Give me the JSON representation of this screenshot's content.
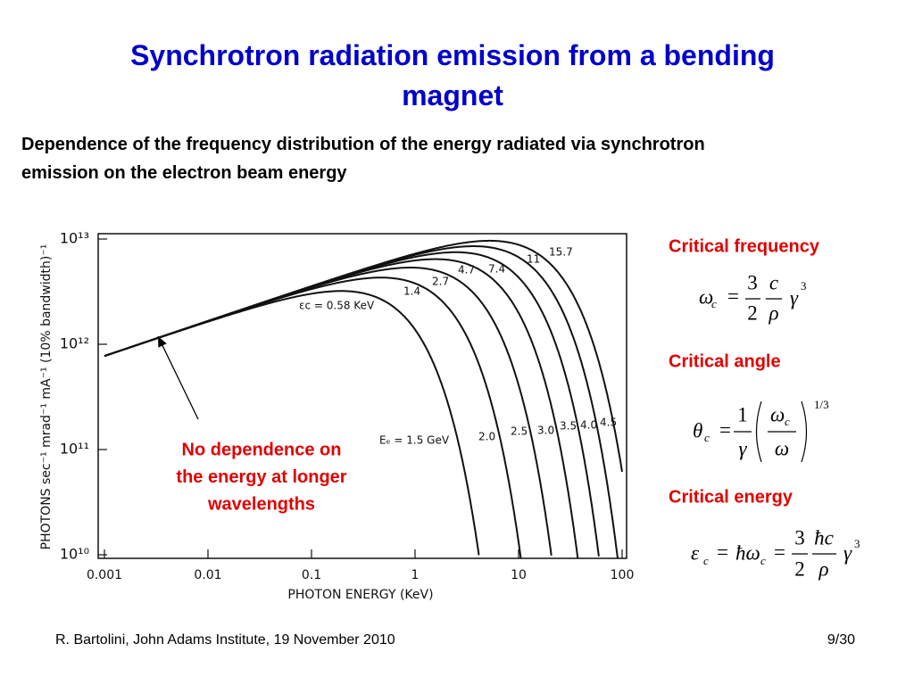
{
  "title": "Synchrotron radiation emission from a bending magnet",
  "subtitle": "Dependence of the frequency distribution of the energy radiated via synchrotron emission on the electron beam energy",
  "chart_data": {
    "type": "line",
    "xlabel": "PHOTON ENERGY (KeV)",
    "ylabel": "PHOTONS sec⁻¹ mrad⁻¹ mA⁻¹ (10% bandwidth)⁻¹",
    "log_x": true,
    "log_y": true,
    "xlim": [
      0.001,
      100
    ],
    "ylim": [
      10000000000,
      10000000000000
    ],
    "xticks": [
      0.001,
      0.01,
      0.1,
      1,
      10,
      100
    ],
    "yticks": [
      {
        "value": 10000000000,
        "label": "10¹⁰"
      },
      {
        "value": 100000000000,
        "label": "10¹¹"
      },
      {
        "value": 1000000000000,
        "label": "10¹²"
      },
      {
        "value": 10000000000000,
        "label": "10¹³"
      }
    ],
    "color": "#111111",
    "critical_energies": {
      "values": [
        0.58,
        1.4,
        2.7,
        4.7,
        7.4,
        11,
        15.7
      ],
      "value_labels": [
        "εc = 0.58 KeV",
        "1.4",
        "2.7",
        "4.7",
        "7.4",
        "11",
        "15.7"
      ]
    },
    "beam_energies": {
      "values": [
        1.5,
        2,
        2.5,
        3,
        3.5,
        4,
        4.5
      ],
      "value_labels": [
        "Eₑ = 1.5 GeV",
        "2.0",
        "2.5",
        "3.0",
        "3.5",
        "4.0",
        "4.5"
      ]
    },
    "annotation": [
      "No dependence on",
      "the energy at longer",
      "wavelengths"
    ]
  },
  "formulas": [
    {
      "label": "Critical frequency",
      "parts": [
        "ω",
        "c",
        "=",
        "3",
        "2",
        "c",
        "ρ",
        "γ",
        "3"
      ]
    },
    {
      "label": "Critical angle",
      "parts": [
        "θ",
        "c",
        "=",
        "1",
        "γ",
        "ω",
        "c",
        "ω",
        "1/3"
      ]
    },
    {
      "label": "Critical energy",
      "parts": [
        "ε",
        "c",
        "=",
        "ħω",
        "c",
        "=",
        "3",
        "2",
        "ħc",
        "ρ",
        "γ",
        "3"
      ]
    }
  ],
  "footer": {
    "source": "R. Bartolini, John Adams Institute, 19 November 2010",
    "page": "9/30"
  }
}
